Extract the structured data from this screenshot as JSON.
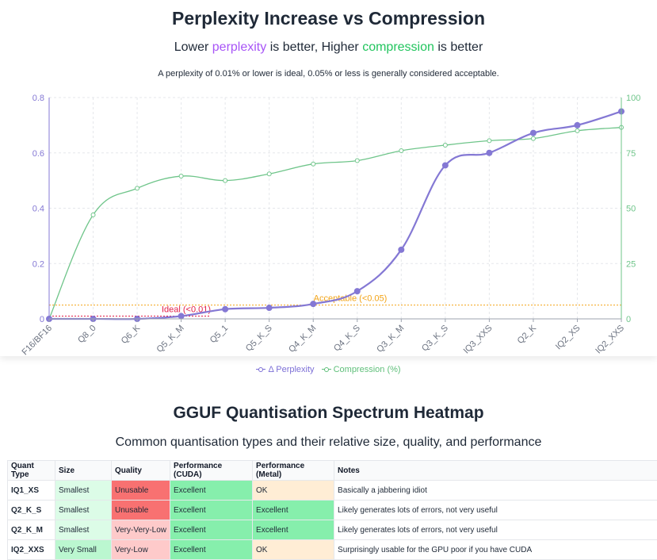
{
  "header": {
    "title": "Perplexity Increase vs Compression",
    "subtitle_parts": [
      "Lower ",
      "perplexity",
      " is better, Higher ",
      "compression",
      " is better"
    ],
    "note": "A perplexity of 0.01% or lower is ideal, 0.05% or less is generally considered acceptable."
  },
  "colors": {
    "perplexity": "#8478d4",
    "compression": "#6fc58a",
    "ideal": "#e11d48",
    "acceptable": "#f2a316",
    "smallest": "#dcfce7",
    "very_small": "#bbf7d0",
    "unusable": "#f87171",
    "very_low": "#fecaca",
    "excellent": "#86efac",
    "ok": "#ffedd5"
  },
  "chart_data": {
    "type": "line",
    "categories": [
      "F16/BF16",
      "Q8_0",
      "Q6_K",
      "Q5_K_M",
      "Q5_1",
      "Q5_K_S",
      "Q4_K_M",
      "Q4_K_S",
      "Q3_K_M",
      "Q3_K_S",
      "IQ3_XXS",
      "Q2_K",
      "IQ2_XS",
      "IQ2_XXS"
    ],
    "series": [
      {
        "name": "Δ Perplexity",
        "axis": "left",
        "values": [
          0,
          0,
          0,
          0.01,
          0.035,
          0.04,
          0.054,
          0.1,
          0.25,
          0.555,
          0.6,
          0.672,
          0.7,
          0.75
        ]
      },
      {
        "name": "Compression (%)",
        "axis": "right",
        "values": [
          0,
          47,
          59,
          64.5,
          62.5,
          65.5,
          70,
          71.5,
          76,
          78.5,
          80.5,
          81.5,
          85,
          86.5
        ]
      }
    ],
    "left_axis": {
      "min": 0,
      "max": 0.8,
      "ticks": [
        "0",
        "0.2",
        "0.4",
        "0.6",
        "0.8"
      ],
      "tick_values": [
        0,
        0.2,
        0.4,
        0.6,
        0.8
      ]
    },
    "right_axis": {
      "min": 0,
      "max": 100,
      "ticks": [
        "0",
        "25",
        "50",
        "75",
        "100"
      ],
      "tick_values": [
        0,
        25,
        50,
        75,
        100
      ]
    },
    "thresholds": [
      {
        "label": "Ideal (<0.01)",
        "value": 0.01,
        "color": "#e11d48"
      },
      {
        "label": "Acceptable (<0.05)",
        "value": 0.05,
        "color": "#f2a316"
      }
    ],
    "grid": true,
    "legend_position": "bottom"
  },
  "legend": {
    "perplexity": "Δ Perplexity",
    "compression": "Compression (%)"
  },
  "heatmap": {
    "title": "GGUF Quantisation Spectrum Heatmap",
    "subtitle": "Common quantisation types and their relative size, quality, and performance",
    "columns": [
      "Quant Type",
      "Size",
      "Quality",
      "Performance (CUDA)",
      "Performance (Metal)",
      "Notes"
    ],
    "rows": [
      {
        "cells": [
          "IQ1_XS",
          "Smallest",
          "Unusable",
          "Excellent",
          "OK",
          "Basically a jabbering idiot"
        ],
        "colors": [
          "",
          "smallest",
          "unusable",
          "excellent",
          "ok",
          ""
        ]
      },
      {
        "cells": [
          "Q2_K_S",
          "Smallest",
          "Unusable",
          "Excellent",
          "Excellent",
          "Likely generates lots of errors, not very useful"
        ],
        "colors": [
          "",
          "smallest",
          "unusable",
          "excellent",
          "excellent",
          ""
        ]
      },
      {
        "cells": [
          "Q2_K_M",
          "Smallest",
          "Very-Very-Low",
          "Excellent",
          "Excellent",
          "Likely generates lots of errors, not very useful"
        ],
        "colors": [
          "",
          "smallest",
          "very_low",
          "excellent",
          "excellent",
          ""
        ]
      },
      {
        "cells": [
          "IQ2_XXS",
          "Very Small",
          "Very-Low",
          "Excellent",
          "OK",
          "Surprisingly usable for the GPU poor if you have CUDA"
        ],
        "colors": [
          "",
          "very_small",
          "very_low",
          "excellent",
          "ok",
          ""
        ]
      }
    ]
  }
}
